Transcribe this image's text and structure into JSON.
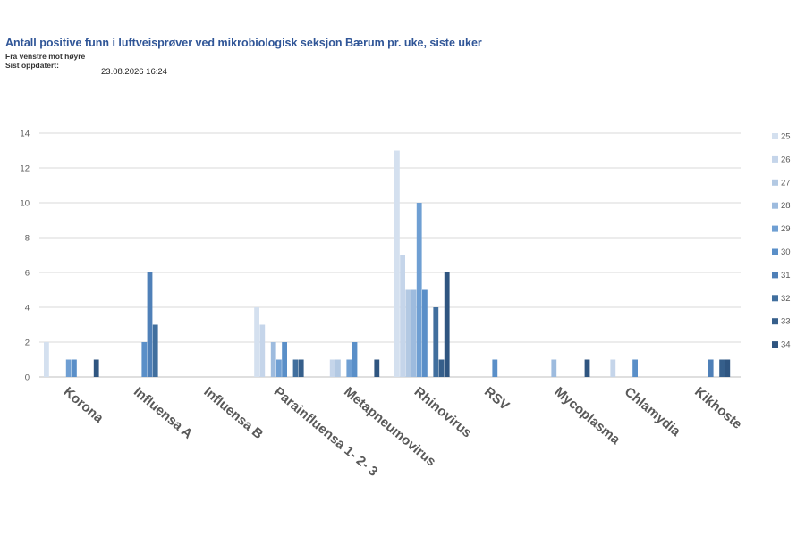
{
  "header": {
    "title": "Antall positive funn i luftveisprøver ved mikrobiologisk seksjon Bærum pr. uke, siste uker",
    "subtitle": "Fra venstre mot høyre",
    "updated_label": "Sist oppdatert:",
    "updated_value": "23.08.2026 16:24"
  },
  "chart_data": {
    "type": "bar",
    "categories": [
      "Korona",
      "Influensa A",
      "Influensa B",
      "Parainfluensa 1- 2- 3",
      "Metapneumovirus",
      "Rhinovirus",
      "RSV",
      "Mycoplasma",
      "Chlamydia",
      "Kikhoste"
    ],
    "ylim": [
      0,
      14
    ],
    "yticks": [
      0,
      2,
      4,
      6,
      8,
      10,
      12,
      14
    ],
    "grid": true,
    "legend_position": "right",
    "series": [
      {
        "name": "25",
        "color": "#d4e0ef",
        "values": [
          2,
          0,
          0,
          4,
          0,
          13,
          0,
          0,
          0,
          0
        ]
      },
      {
        "name": "26",
        "color": "#c5d5ea",
        "values": [
          0,
          0,
          0,
          3,
          1,
          7,
          0,
          0,
          1,
          0
        ]
      },
      {
        "name": "27",
        "color": "#b3c9e3",
        "values": [
          0,
          0,
          0,
          0,
          1,
          5,
          0,
          0,
          0,
          0
        ]
      },
      {
        "name": "28",
        "color": "#9dbbde",
        "values": [
          0,
          0,
          0,
          2,
          0,
          5,
          0,
          1,
          0,
          0
        ]
      },
      {
        "name": "29",
        "color": "#6f9fd3",
        "values": [
          1,
          0,
          0,
          1,
          1,
          10,
          0,
          0,
          0,
          0
        ]
      },
      {
        "name": "30",
        "color": "#5a8fc8",
        "values": [
          1,
          2,
          0,
          2,
          2,
          5,
          1,
          0,
          1,
          0
        ]
      },
      {
        "name": "31",
        "color": "#4f80b8",
        "values": [
          0,
          6,
          0,
          0,
          0,
          0,
          0,
          0,
          0,
          1
        ]
      },
      {
        "name": "32",
        "color": "#416f9e",
        "values": [
          0,
          3,
          0,
          1,
          0,
          4,
          0,
          0,
          0,
          0
        ]
      },
      {
        "name": "33",
        "color": "#365f8b",
        "values": [
          0,
          0,
          0,
          1,
          0,
          1,
          0,
          0,
          0,
          1
        ]
      },
      {
        "name": "34",
        "color": "#2f5580",
        "values": [
          1,
          0,
          0,
          0,
          1,
          6,
          0,
          1,
          0,
          1
        ]
      }
    ]
  }
}
